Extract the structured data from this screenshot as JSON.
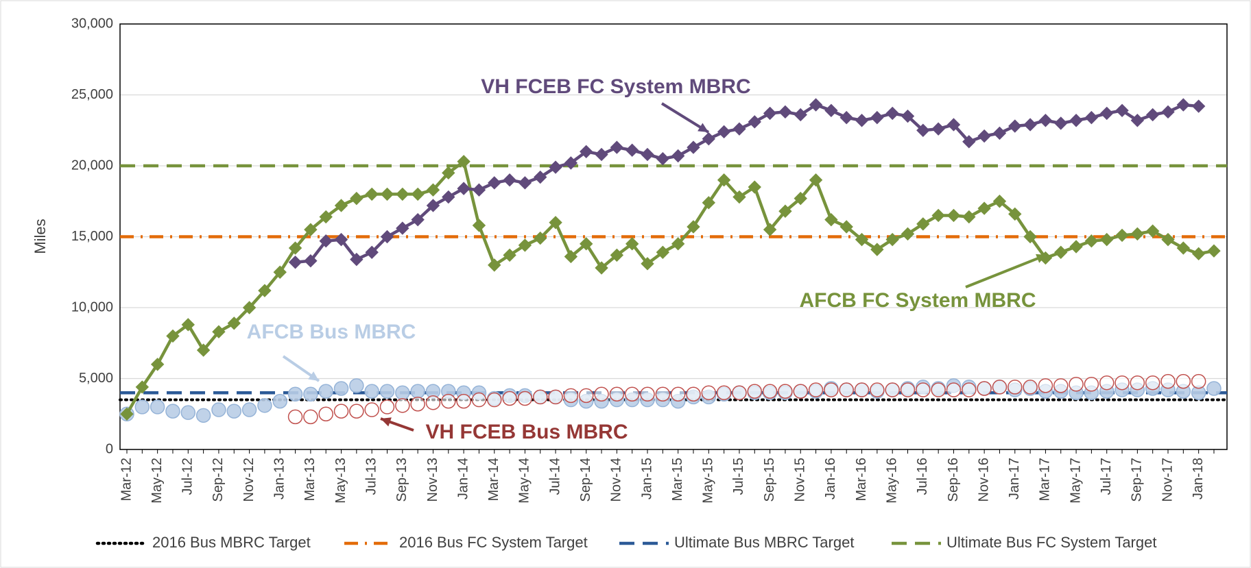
{
  "chart_data": {
    "type": "line",
    "ylabel": "Miles",
    "ylim": [
      0,
      30000
    ],
    "yticks": [
      0,
      {
        "value": 5000,
        "label": "5,000"
      },
      {
        "value": 10000,
        "label": "10,000"
      },
      {
        "value": 15000,
        "label": "15,000"
      },
      {
        "value": 20000,
        "label": "20,000"
      },
      {
        "value": 25000,
        "label": "25,000"
      },
      {
        "value": 30000,
        "label": "30,000"
      }
    ],
    "grid": true,
    "categories": [
      "Mar-12",
      null,
      "May-12",
      null,
      "Jul-12",
      null,
      "Sep-12",
      null,
      "Nov-12",
      null,
      "Jan-13",
      null,
      "Mar-13",
      null,
      "May-13",
      null,
      "Jul-13",
      null,
      "Sep-13",
      null,
      "Nov-13",
      null,
      "Jan-14",
      null,
      "Mar-14",
      null,
      "May-14",
      null,
      "Jul-14",
      null,
      "Sep-14",
      null,
      "Nov-14",
      null,
      "Jan-15",
      null,
      "Mar-15",
      null,
      "May-15",
      null,
      "Jul-15",
      null,
      "Sep-15",
      null,
      "Nov-15",
      null,
      "Jan-16",
      null,
      "Mar-16",
      null,
      "May-16",
      null,
      "Jul-16",
      null,
      "Sep-16",
      null,
      "Nov-16",
      null,
      "Jan-17",
      null,
      "Mar-17",
      null,
      "May-17",
      null,
      "Jul-17",
      null,
      "Sep-17",
      null,
      "Nov-17",
      null,
      "Jan-18",
      null
    ],
    "series": [
      {
        "name": "AFCB Bus MBRC",
        "color": "#b9cde5",
        "stroke": "#95b3d7",
        "marker": "circle",
        "line": false,
        "values": [
          2500,
          3000,
          3000,
          2700,
          2600,
          2400,
          2800,
          2700,
          2800,
          3100,
          3400,
          3900,
          3900,
          4100,
          4300,
          4500,
          4100,
          4100,
          4000,
          4100,
          4100,
          4100,
          4000,
          4000,
          3600,
          3800,
          3800,
          3700,
          3700,
          3500,
          3400,
          3400,
          3500,
          3500,
          3500,
          3500,
          3400,
          3700,
          3700,
          3900,
          4000,
          4000,
          4000,
          4000,
          4100,
          4100,
          4300,
          4200,
          4200,
          4100,
          4200,
          4300,
          4400,
          4300,
          4500,
          4400,
          4300,
          4400,
          4200,
          4300,
          4100,
          4100,
          4000,
          4000,
          4100,
          4200,
          4200,
          4300,
          4200,
          4100,
          4000,
          4300
        ]
      },
      {
        "name": "VH FCEB Bus MBRC",
        "color": "#ffffff",
        "stroke": "#c0504d",
        "marker": "circle",
        "line": false,
        "values": [
          null,
          null,
          null,
          null,
          null,
          null,
          null,
          null,
          null,
          null,
          null,
          2300,
          2300,
          2500,
          2700,
          2700,
          2800,
          3000,
          3100,
          3200,
          3300,
          3400,
          3400,
          3500,
          3500,
          3600,
          3600,
          3700,
          3700,
          3800,
          3800,
          3900,
          3900,
          3900,
          3900,
          3900,
          3900,
          3900,
          4000,
          4000,
          4000,
          4100,
          4100,
          4100,
          4100,
          4200,
          4200,
          4200,
          4200,
          4200,
          4200,
          4200,
          4200,
          4200,
          4200,
          4200,
          4300,
          4400,
          4400,
          4400,
          4500,
          4500,
          4600,
          4600,
          4700,
          4700,
          4700,
          4700,
          4800,
          4800,
          4800,
          null
        ]
      },
      {
        "name": "AFCB FC System MBRC",
        "color": "#77933c",
        "stroke": "#77933c",
        "marker": "diamond",
        "line": true,
        "values": [
          2500,
          4400,
          6000,
          8000,
          8800,
          7000,
          8300,
          8900,
          10000,
          11200,
          12500,
          14200,
          15500,
          16400,
          17200,
          17700,
          18000,
          18000,
          18000,
          18000,
          18300,
          19500,
          20300,
          15800,
          13000,
          13700,
          14400,
          14900,
          16000,
          13600,
          14500,
          12800,
          13700,
          14500,
          13100,
          13900,
          14500,
          15700,
          17400,
          19000,
          17800,
          18500,
          15500,
          16800,
          17700,
          19000,
          16200,
          15700,
          14800,
          14100,
          14800,
          15200,
          15900,
          16500,
          16500,
          16400,
          17000,
          17500,
          16600,
          15000,
          13500,
          13900,
          14300,
          14700,
          14800,
          15100,
          15200,
          15400,
          14800,
          14200,
          13800,
          14000
        ]
      },
      {
        "name": "VH FCEB FC System MBRC",
        "color": "#604a7b",
        "stroke": "#604a7b",
        "marker": "diamond",
        "line": true,
        "values": [
          null,
          null,
          null,
          null,
          null,
          null,
          null,
          null,
          null,
          null,
          null,
          13200,
          13300,
          14700,
          14800,
          13400,
          13900,
          15000,
          15600,
          16200,
          17200,
          17800,
          18400,
          18300,
          18800,
          19000,
          18800,
          19200,
          19900,
          20200,
          21000,
          20800,
          21300,
          21100,
          20800,
          20500,
          20700,
          21300,
          21900,
          22400,
          22600,
          23100,
          23700,
          23800,
          23600,
          24300,
          23900,
          23400,
          23200,
          23400,
          23700,
          23500,
          22500,
          22600,
          22900,
          21700,
          22100,
          22300,
          22800,
          22900,
          23200,
          23000,
          23200,
          23400,
          23700,
          23900,
          23200,
          23600,
          23800,
          24300,
          24200,
          null
        ]
      }
    ],
    "targets": [
      {
        "name": "2016 Bus MBRC Target",
        "color": "#000000",
        "dash": "dotted",
        "value": 3500
      },
      {
        "name": "2016 Bus FC System Target",
        "color": "#e36c09",
        "dash": "dash-dot",
        "value": 15000
      },
      {
        "name": "Ultimate Bus MBRC Target",
        "color": "#2c5a97",
        "dash": "dashed",
        "value": 4000
      },
      {
        "name": "Ultimate Bus FC System Target",
        "color": "#77933c",
        "dash": "dashed",
        "value": 20000
      }
    ],
    "annotations": [
      {
        "text": "VH FCEB FC System MBRC",
        "color": "#604a7b"
      },
      {
        "text": "AFCB FC System MBRC",
        "color": "#77933c"
      },
      {
        "text": "AFCB Bus MBRC",
        "color": "#b9cde5"
      },
      {
        "text": "VH FCEB Bus MBRC",
        "color": "#953735"
      }
    ]
  }
}
